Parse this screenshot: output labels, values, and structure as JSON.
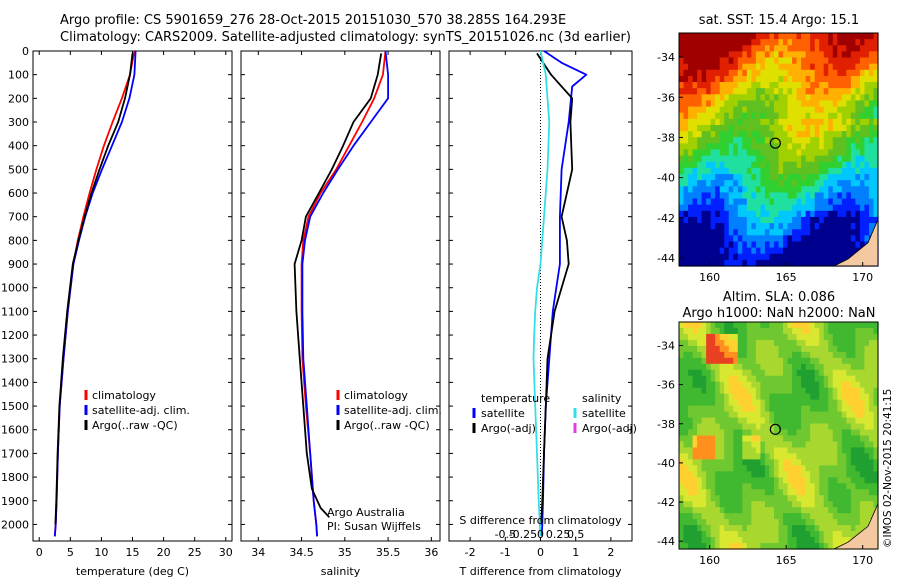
{
  "header": {
    "line1": "Argo profile: CS 5901659_276 28-Oct-2015 20151030_570 38.285S 164.293E",
    "line2": "Climatology: CARS2009. Satellite-adjusted climatology: synTS_20151026.nc (3d earlier)"
  },
  "colors": {
    "climatology": "#ff0000",
    "satellite": "#0000ff",
    "argo": "#000000",
    "sal_sat": "#33e0e8",
    "sal_argo": "#e040e0"
  },
  "chart_data": [
    {
      "id": "temperature",
      "type": "line",
      "xlabel": "temperature (deg C)",
      "ylabel": "",
      "xlim": [
        -1,
        31
      ],
      "ylim": [
        2070,
        0
      ],
      "xticks": [
        0,
        5,
        10,
        15,
        20,
        25,
        30
      ],
      "yticks": [
        0,
        100,
        200,
        300,
        400,
        500,
        600,
        700,
        800,
        900,
        1000,
        1100,
        1200,
        1300,
        1400,
        1500,
        1600,
        1700,
        1800,
        1900,
        2000
      ],
      "legend": [
        "climatology",
        "satellite-adj. clim.",
        "Argo(..raw -QC)"
      ],
      "series": [
        {
          "name": "climatology",
          "color": "#ff0000",
          "x": [
            15.3,
            14.6,
            13.3,
            11.8,
            10.4,
            9.2,
            8.1,
            7.1,
            6.2,
            5.5,
            4.6,
            3.9,
            3.3,
            3.0,
            2.8,
            2.65,
            2.5
          ],
          "y": [
            0,
            100,
            200,
            300,
            400,
            500,
            600,
            700,
            800,
            900,
            1100,
            1300,
            1500,
            1700,
            1900,
            2000,
            2050
          ]
        },
        {
          "name": "satellite-adj. clim.",
          "color": "#0000ff",
          "x": [
            15.5,
            15.3,
            14.5,
            13.3,
            11.7,
            10.1,
            8.6,
            7.4,
            6.4,
            5.5,
            4.6,
            3.9,
            3.3,
            3.0,
            2.8,
            2.65,
            2.5
          ],
          "y": [
            0,
            100,
            200,
            300,
            400,
            500,
            600,
            700,
            800,
            900,
            1100,
            1300,
            1500,
            1700,
            1900,
            2000,
            2050
          ]
        },
        {
          "name": "Argo(..raw -QC)",
          "color": "#000000",
          "x": [
            15.0,
            14.6,
            13.8,
            12.7,
            11.1,
            9.7,
            8.4,
            7.3,
            6.3,
            5.4,
            4.5,
            3.8,
            3.25,
            2.95,
            2.75,
            2.6
          ],
          "y": [
            10,
            100,
            200,
            300,
            400,
            500,
            600,
            700,
            800,
            900,
            1100,
            1300,
            1500,
            1700,
            1900,
            2000
          ]
        }
      ]
    },
    {
      "id": "salinity",
      "type": "line",
      "xlabel": "salinity",
      "ylabel": "",
      "xlim": [
        33.8,
        36.1
      ],
      "ylim": [
        2070,
        0
      ],
      "xticks": [
        34,
        34.5,
        35,
        35.5,
        36
      ],
      "legend": [
        "climatology",
        "satellite-adj. clim.",
        "Argo(..raw -QC)"
      ],
      "annotation": [
        "Argo Australia",
        "PI: Susan Wijffels"
      ],
      "series": [
        {
          "name": "climatology",
          "color": "#ff0000",
          "x": [
            35.47,
            35.44,
            35.34,
            35.2,
            35.05,
            34.9,
            34.72,
            34.58,
            34.52,
            34.5,
            34.5,
            34.51,
            34.55,
            34.6,
            34.64,
            34.67,
            34.68
          ],
          "y": [
            0,
            100,
            200,
            300,
            400,
            500,
            600,
            700,
            800,
            900,
            1100,
            1300,
            1500,
            1700,
            1900,
            2000,
            2050
          ]
        },
        {
          "name": "satellite-adj. clim.",
          "color": "#0000ff",
          "x": [
            35.47,
            35.5,
            35.5,
            35.3,
            35.1,
            34.92,
            34.75,
            34.6,
            34.54,
            34.51,
            34.51,
            34.52,
            34.56,
            34.6,
            34.64,
            34.67,
            34.68
          ],
          "y": [
            0,
            100,
            200,
            300,
            400,
            500,
            600,
            700,
            800,
            900,
            1100,
            1300,
            1500,
            1700,
            1900,
            2000,
            2050
          ]
        },
        {
          "name": "Argo(..raw -QC)",
          "color": "#000000",
          "x": [
            35.42,
            35.38,
            35.3,
            35.1,
            34.98,
            34.85,
            34.7,
            34.55,
            34.5,
            34.42,
            34.44,
            34.48,
            34.52,
            34.56,
            34.62,
            34.72,
            34.82
          ],
          "y": [
            10,
            100,
            200,
            300,
            400,
            500,
            600,
            700,
            800,
            900,
            1100,
            1300,
            1500,
            1700,
            1850,
            1930,
            1970
          ]
        }
      ]
    },
    {
      "id": "differences",
      "type": "line",
      "xlabel": "T difference from climatology",
      "xlabel2": "S difference from climatology",
      "xlim": [
        -2.6,
        2.6
      ],
      "ylim": [
        2070,
        0
      ],
      "xticks": [
        -2,
        -1,
        0,
        1,
        2
      ],
      "xticks_S": [
        "-0.5",
        "-0.25",
        "0",
        "0.25",
        "0.5"
      ],
      "legend_temperature_title": "temperature",
      "legend_salinity_title": "salinity",
      "legend_temperature": [
        "satellite",
        "Argo(-adj)"
      ],
      "legend_salinity": [
        "satellite",
        "Argo(-adj)"
      ],
      "series": [
        {
          "name": "T satellite",
          "color": "#0000ff",
          "x": [
            0.1,
            0.6,
            1.3,
            0.9,
            0.8,
            0.6,
            0.55,
            0.55,
            0.45,
            0.35,
            0.25,
            0.15,
            0.1,
            0.07,
            0.05,
            0.03
          ],
          "y": [
            0,
            50,
            100,
            150,
            300,
            500,
            700,
            900,
            1000,
            1100,
            1300,
            1500,
            1700,
            1900,
            2000,
            2050
          ]
        },
        {
          "name": "T Argo(-adj)",
          "color": "#000000",
          "x": [
            -0.1,
            0.3,
            0.6,
            0.9,
            0.85,
            0.9,
            0.6,
            0.75,
            0.8,
            0.6,
            0.4,
            0.2,
            0.15,
            0.1,
            0.05,
            0.02
          ],
          "y": [
            10,
            100,
            150,
            200,
            300,
            500,
            700,
            800,
            900,
            1000,
            1100,
            1300,
            1500,
            1700,
            1900,
            2000
          ]
        },
        {
          "name": "S satellite",
          "color": "#33e0e8",
          "x": [
            0.0,
            0.15,
            0.2,
            0.25,
            0.2,
            0.1,
            0.0,
            -0.1,
            -0.15,
            -0.18,
            -0.2,
            -0.15,
            -0.1,
            -0.05,
            0.0
          ],
          "y": [
            0,
            100,
            200,
            300,
            500,
            700,
            900,
            1000,
            1100,
            1200,
            1300,
            1500,
            1700,
            1900,
            2050
          ]
        }
      ]
    },
    {
      "id": "sst_map",
      "type": "heatmap",
      "title": "sat. SST: 15.4 Argo: 15.1",
      "xticks": [
        160,
        165,
        170
      ],
      "yticks": [
        -34,
        -36,
        -38,
        -40,
        -42,
        -44
      ],
      "xlim": [
        158,
        171
      ],
      "ylim": [
        -44.4,
        -32.8
      ],
      "marker": {
        "lon": 164.293,
        "lat": -38.285
      }
    },
    {
      "id": "sla_map",
      "type": "heatmap",
      "title": [
        "Altim. SLA: 0.086",
        "Argo h1000: NaN h2000: NaN"
      ],
      "xticks": [
        160,
        165,
        170
      ],
      "yticks": [
        -34,
        -36,
        -38,
        -40,
        -42,
        -44
      ],
      "xlim": [
        158,
        171
      ],
      "ylim": [
        -44.4,
        -32.8
      ],
      "marker": {
        "lon": 164.293,
        "lat": -38.285
      }
    }
  ],
  "stamp": "©IMOS 02-Nov-2015 20:41:15"
}
